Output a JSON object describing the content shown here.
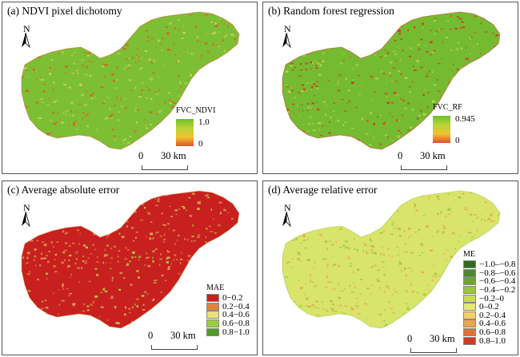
{
  "panels": {
    "a": {
      "title": "(a) NDVI pixel dichotomy",
      "north": "N",
      "scale": {
        "zero": "0",
        "dist": "30 km"
      },
      "legend": {
        "title": "FVC_NDVI",
        "max": "1.0",
        "min": "0"
      },
      "palette": {
        "base": "#7dbf34",
        "spots": "#e05a2b",
        "light": "#c9dc5a"
      }
    },
    "b": {
      "title": "(b) Random forest regression",
      "north": "N",
      "scale": {
        "zero": "0",
        "dist": "30 km"
      },
      "legend": {
        "title": "FVC_RF",
        "max": "0.945",
        "min": "0"
      },
      "palette": {
        "base": "#74bb31",
        "spots": "#d9331f",
        "light": "#b9d64a"
      }
    },
    "c": {
      "title": "(c) Average absolute error",
      "north": "N",
      "scale": {
        "zero": "0",
        "dist": "30 km"
      },
      "legend": {
        "title": "MAE",
        "classes": [
          {
            "label": "0−0.2",
            "color": "#c8201f"
          },
          {
            "label": "0.2−0.4",
            "color": "#e4823a"
          },
          {
            "label": "0.4−0.6",
            "color": "#e8e07a"
          },
          {
            "label": "0.6−0.8",
            "color": "#9ccd3e"
          },
          {
            "label": "0.8−1.0",
            "color": "#4f9a2a"
          }
        ]
      },
      "palette": {
        "base": "#c8201f",
        "spots": "#e7a957",
        "light": "#b7d24a"
      }
    },
    "d": {
      "title": "(d) Average relative error",
      "north": "N",
      "scale": {
        "zero": "0",
        "dist": "30 km"
      },
      "legend": {
        "title": "ME",
        "classes": [
          {
            "label": "−1.0–−0.8",
            "color": "#2f6b1e"
          },
          {
            "label": "−0.8–−0.6",
            "color": "#4b8a28"
          },
          {
            "label": "−0.6–−0.4",
            "color": "#6ea532"
          },
          {
            "label": "−0.4–−0.2",
            "color": "#9cc43c"
          },
          {
            "label": "−0.2–0",
            "color": "#c8dc58"
          },
          {
            "label": "0–0.2",
            "color": "#e6e874"
          },
          {
            "label": "0.2–0.4",
            "color": "#f2d06a"
          },
          {
            "label": "0.4–0.6",
            "color": "#eba452"
          },
          {
            "label": "0.6–0.8",
            "color": "#e07038"
          },
          {
            "label": "0.8–1.0",
            "color": "#cf3a24"
          }
        ]
      },
      "palette": {
        "base": "#d9e46a",
        "spots": "#9cc43c",
        "light": "#eba452"
      }
    }
  }
}
